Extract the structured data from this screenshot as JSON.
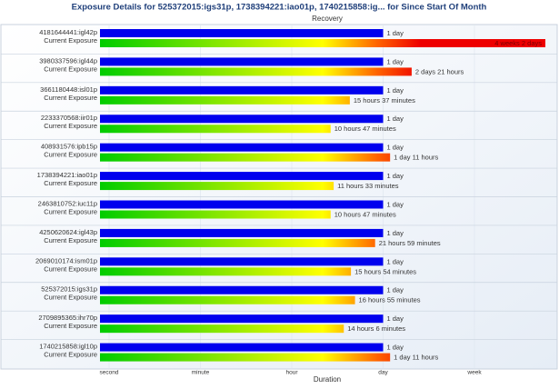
{
  "chart_data": {
    "type": "bar",
    "title": "Exposure Details for 525372015:igs31p, 1738394221:iao01p, 1740215858:ig... for Since Start Of Month",
    "xlabel": "Duration",
    "categories": [
      "4181644441:igl42p",
      "3980337596:igl44p",
      "3661180448:isl01p",
      "2233370568:iir01p",
      "408931576:ipb15p",
      "1738394221:iao01p",
      "2463810752:iuc11p",
      "4250620624:igl43p",
      "2069010174:ism01p",
      "525372015:igs31p",
      "2709895365:ihr70p",
      "1740215858:igl10p"
    ],
    "series": [
      {
        "name": "Recovery",
        "color": "#0000ee",
        "values": [
          86400,
          86400,
          86400,
          86400,
          86400,
          86400,
          86400,
          86400,
          86400,
          86400,
          86400,
          86400
        ],
        "value_labels": [
          "1 day",
          "1 day",
          "1 day",
          "1 day",
          "1 day",
          "1 day",
          "1 day",
          "1 day",
          "1 day",
          "1 day",
          "1 day",
          "1 day"
        ]
      },
      {
        "name": "Current Exposure",
        "colors": [
          "#00cc00",
          "#ffff00",
          "#ff6600",
          "#ee0000"
        ],
        "values": [
          2592000,
          248400,
          56220,
          38820,
          126000,
          41580,
          38820,
          79140,
          57240,
          60900,
          50760,
          126000
        ],
        "value_labels": [
          "4 weeks 2 days",
          "2 days 21 hours",
          "15 hours 37 minutes",
          "10 hours 47 minutes",
          "1 day 11 hours",
          "11 hours 33 minutes",
          "10 hours 47 minutes",
          "21 hours 59 minutes",
          "15 hours 54 minutes",
          "16 hours 55 minutes",
          "14 hours 6 minutes",
          "1 day 11 hours"
        ]
      }
    ],
    "xlim": [
      0,
      2592000
    ],
    "xticks": [
      {
        "value": 1,
        "label": "second"
      },
      {
        "value": 60,
        "label": "minute"
      },
      {
        "value": 3600,
        "label": "hour"
      },
      {
        "value": 86400,
        "label": "day"
      },
      {
        "value": 604800,
        "label": "week"
      }
    ],
    "grid": true
  }
}
